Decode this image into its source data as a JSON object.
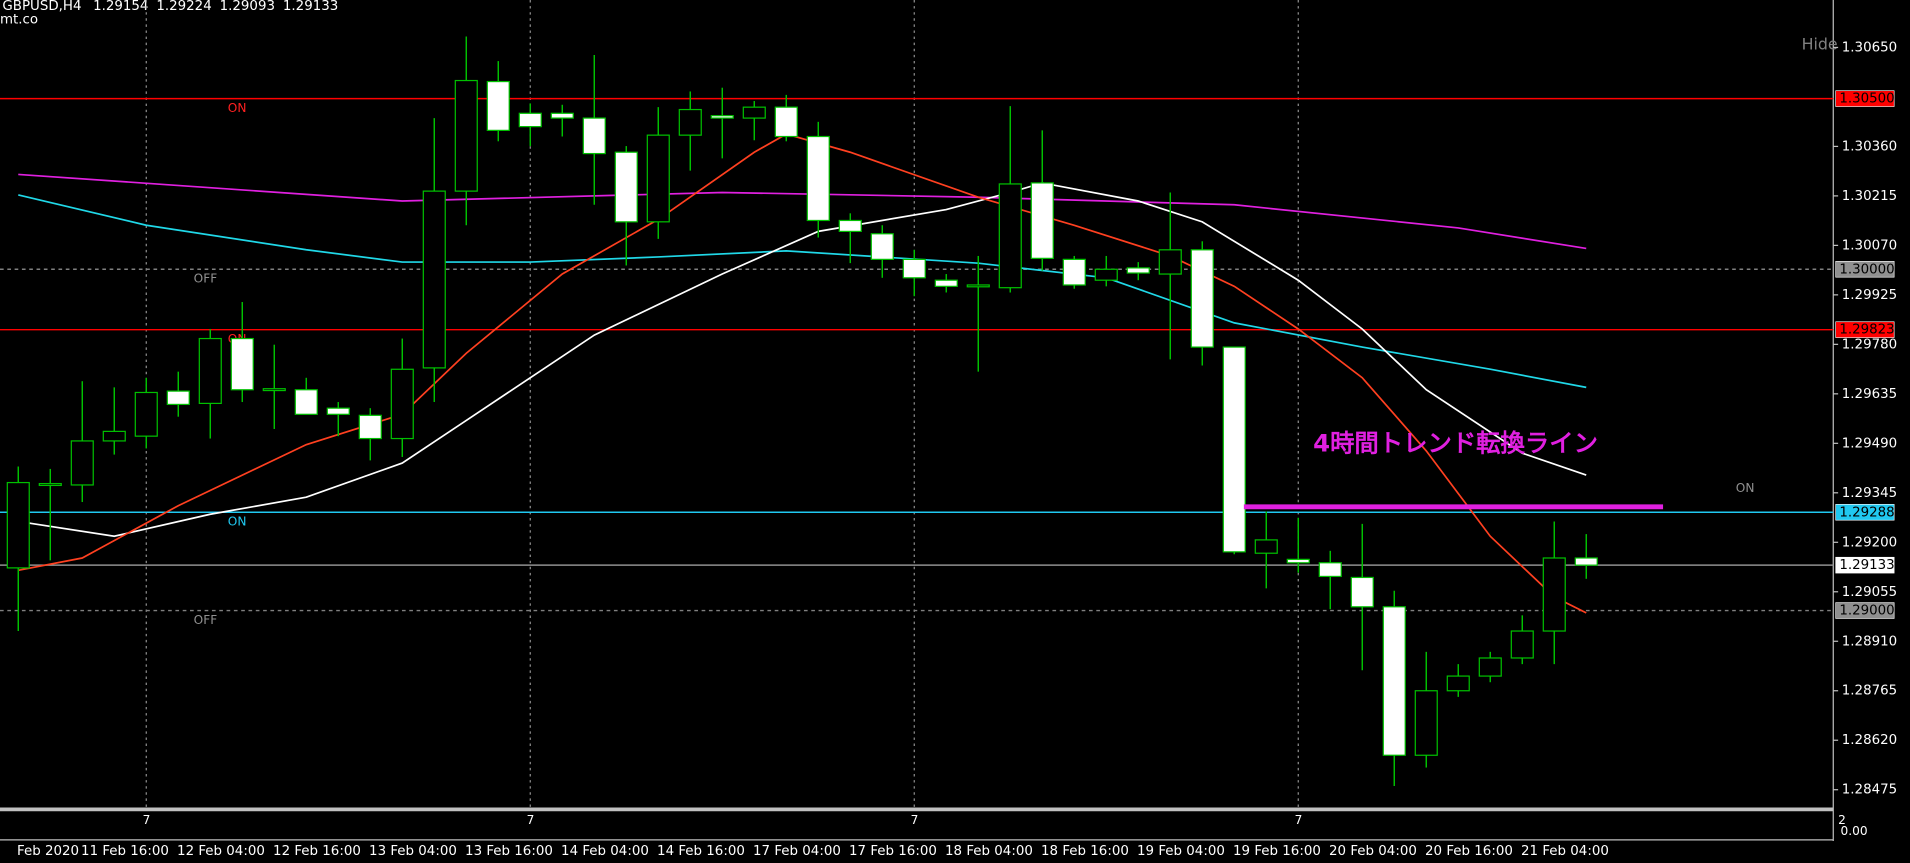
{
  "chart_data": {
    "type": "candlestick",
    "title": "GBPUSD,H4",
    "watermark": "mt.co",
    "hide_button": "Hide",
    "subwindow_labels": [
      "2",
      "0.00"
    ],
    "bull_fill": "#000000",
    "bear_fill": "#ffffff",
    "outline_color": "#00c000",
    "categories": [
      "Feb 2020",
      null,
      "11 Feb 16:00",
      null,
      null,
      "12 Feb 04:00",
      null,
      null,
      "12 Feb 16:00",
      null,
      null,
      "13 Feb 04:00",
      null,
      null,
      "13 Feb 16:00",
      null,
      null,
      "14 Feb 04:00",
      null,
      null,
      "14 Feb 16:00",
      null,
      null,
      "17 Feb 04:00",
      null,
      null,
      "17 Feb 16:00",
      null,
      null,
      "18 Feb 04:00",
      null,
      null,
      "18 Feb 16:00",
      null,
      null,
      "19 Feb 04:00",
      null,
      null,
      "19 Feb 16:00",
      null,
      null,
      "20 Feb 04:00",
      null,
      null,
      "20 Feb 16:00",
      null,
      null,
      "21 Feb 04:00",
      null,
      null
    ],
    "open": [
      1.29125,
      1.29368,
      1.29368,
      1.29497,
      1.29511,
      1.29643,
      1.29607,
      1.29797,
      1.29647,
      1.29647,
      1.29593,
      1.29572,
      1.29504,
      1.29711,
      1.30229,
      1.3055,
      1.30457,
      1.30457,
      1.30443,
      1.30343,
      1.30139,
      1.30393,
      1.3045,
      1.30443,
      1.30475,
      1.30389,
      1.30143,
      1.30104,
      1.30029,
      1.29968,
      1.2995,
      1.29946,
      1.30253,
      1.30029,
      1.29968,
      1.30004,
      1.29986,
      1.30057,
      1.29772,
      1.29168,
      1.2915,
      1.2914,
      1.29097,
      1.29011,
      1.28576,
      1.28765,
      1.28808,
      1.28861,
      1.2894,
      1.29154
    ],
    "high": [
      1.29422,
      1.29415,
      1.29672,
      1.29654,
      1.29682,
      1.297,
      1.29825,
      1.29904,
      1.29779,
      1.29682,
      1.29611,
      1.29593,
      1.29797,
      1.30443,
      1.30682,
      1.3061,
      1.30486,
      1.30482,
      1.30628,
      1.30361,
      1.30475,
      1.30521,
      1.30532,
      1.30493,
      1.30511,
      1.30432,
      1.30164,
      1.30129,
      1.30057,
      1.29986,
      1.30039,
      1.30478,
      1.30407,
      1.30039,
      1.30039,
      1.30021,
      1.30225,
      1.30082,
      1.29772,
      1.2929,
      1.29272,
      1.29175,
      1.29254,
      1.29058,
      1.28879,
      1.28843,
      1.28879,
      1.28986,
      1.29261,
      1.29224
    ],
    "low": [
      1.2894,
      1.29147,
      1.29318,
      1.29457,
      1.29475,
      1.29568,
      1.29504,
      1.29611,
      1.29532,
      1.29575,
      1.29511,
      1.2944,
      1.2945,
      1.29611,
      1.30129,
      1.30375,
      1.30361,
      1.30389,
      1.30189,
      1.30011,
      1.30089,
      1.30289,
      1.30325,
      1.30378,
      1.30375,
      1.30093,
      1.30018,
      1.29975,
      1.29921,
      1.29932,
      1.297,
      1.29932,
      1.29996,
      1.29943,
      1.2995,
      1.29968,
      1.29736,
      1.29718,
      1.29165,
      1.29065,
      1.29111,
      1.29004,
      1.28825,
      1.28486,
      1.2854,
      1.28747,
      1.2879,
      1.28843,
      1.28843,
      1.29093
    ],
    "close": [
      1.29375,
      1.29372,
      1.29497,
      1.29525,
      1.29639,
      1.29604,
      1.29797,
      1.29647,
      1.2965,
      1.29575,
      1.29575,
      1.29504,
      1.29707,
      1.30229,
      1.30553,
      1.30407,
      1.30418,
      1.30443,
      1.30339,
      1.30139,
      1.30393,
      1.30468,
      1.30443,
      1.30475,
      1.30389,
      1.30143,
      1.30111,
      1.30029,
      1.29975,
      1.2995,
      1.29954,
      1.3025,
      1.30032,
      1.29954,
      1.3,
      1.29989,
      1.30057,
      1.29772,
      1.29172,
      1.29207,
      1.2914,
      1.291,
      1.29011,
      1.28576,
      1.28765,
      1.28808,
      1.28861,
      1.2894,
      1.29154,
      1.29133
    ],
    "indicators": [
      {
        "color": "#e020e0",
        "x": [
          0,
          12,
          22,
          30,
          38,
          45,
          49
        ],
        "values": [
          1.30278,
          1.302,
          1.30225,
          1.30211,
          1.30189,
          1.30121,
          1.30061
        ]
      },
      {
        "color": "#20d8e8",
        "x": [
          0,
          4,
          9,
          12,
          16,
          20,
          24,
          30,
          34,
          38,
          42,
          46,
          49
        ],
        "values": [
          1.30218,
          1.30129,
          1.30057,
          1.30021,
          1.30021,
          1.30036,
          1.30054,
          1.30018,
          1.29975,
          1.29843,
          1.29772,
          1.29707,
          1.29654
        ]
      },
      {
        "color": "#ffffff",
        "x": [
          0,
          3,
          6,
          9,
          12,
          14,
          18,
          22,
          25,
          29,
          31,
          32,
          35,
          37,
          40,
          42,
          44,
          47,
          49
        ],
        "values": [
          1.29261,
          1.29218,
          1.29282,
          1.29332,
          1.29432,
          1.29557,
          1.29807,
          1.29986,
          1.30111,
          1.30175,
          1.30225,
          1.30253,
          1.302,
          1.30139,
          1.29968,
          1.29825,
          1.29647,
          1.29461,
          1.29397
        ]
      },
      {
        "color": "#ff4020",
        "x": [
          0,
          2,
          5,
          9,
          12,
          14,
          17,
          20,
          23,
          24,
          26,
          30,
          33,
          36,
          38,
          40,
          42,
          44,
          46,
          48,
          49
        ],
        "values": [
          1.29118,
          1.29154,
          1.29307,
          1.29486,
          1.29575,
          1.29754,
          1.29986,
          1.30146,
          1.30343,
          1.30396,
          1.30343,
          1.30211,
          1.30129,
          1.30039,
          1.2995,
          1.29825,
          1.29682,
          1.29468,
          1.29218,
          1.2904,
          1.28993
        ]
      }
    ],
    "ylim": [
      1.28421,
      1.30789
    ],
    "yticks": [
      {
        "value": 1.3065,
        "label": "1.30650"
      },
      {
        "value": 1.3036,
        "label": "1.30360"
      },
      {
        "value": 1.30215,
        "label": "1.30215"
      },
      {
        "value": 1.3007,
        "label": "1.30070"
      },
      {
        "value": 1.29925,
        "label": "1.29925"
      },
      {
        "value": 1.2978,
        "label": "1.29780"
      },
      {
        "value": 1.29635,
        "label": "1.29635"
      },
      {
        "value": 1.2949,
        "label": "1.29490"
      },
      {
        "value": 1.29345,
        "label": "1.29345"
      },
      {
        "value": 1.292,
        "label": "1.29200"
      },
      {
        "value": 1.29055,
        "label": "1.29055"
      },
      {
        "value": 1.2891,
        "label": "1.28910"
      },
      {
        "value": 1.28765,
        "label": "1.28765"
      },
      {
        "value": 1.2862,
        "label": "1.28620"
      },
      {
        "value": 1.28475,
        "label": "1.28475"
      }
    ],
    "xgrid": [
      {
        "value": 4,
        "label": "7"
      },
      {
        "value": 16,
        "label": "7"
      },
      {
        "value": 28,
        "label": "7"
      },
      {
        "value": 40,
        "label": "7"
      }
    ],
    "hlines": [
      {
        "value": 1.305,
        "label": "1.30500",
        "color": "#ff0000",
        "dash": false,
        "label_bg": "#ff0000",
        "label_color": "#000000",
        "tag": "ON",
        "tag_color": "#ff2020"
      },
      {
        "value": 1.3,
        "label": "1.30000",
        "color": "#808080",
        "dash": true,
        "label_bg": "#909090",
        "label_color": "#000000",
        "tag": "OFF",
        "tag_color": "#909090"
      },
      {
        "value": 1.29823,
        "label": "1.29823",
        "color": "#ff0000",
        "dash": false,
        "label_bg": "#ff0000",
        "label_color": "#000000",
        "tag": "ON",
        "tag_color": "#ff2020"
      },
      {
        "value": 1.29288,
        "label": "1.29288",
        "color": "#20c8f0",
        "dash": false,
        "label_bg": "#20c8f0",
        "label_color": "#000000",
        "tag": "ON",
        "tag_color": "#20c8f0"
      },
      {
        "value": 1.29133,
        "label": "1.29133",
        "color": "#909090",
        "dash": false,
        "label_bg": "#ffffff",
        "label_color": "#000000",
        "tag": null,
        "tag_color": null
      },
      {
        "value": 1.29,
        "label": "1.29000",
        "color": "#808080",
        "dash": true,
        "label_bg": "#909090",
        "label_color": "#000000",
        "tag": "OFF",
        "tag_color": "#909090"
      }
    ],
    "trend_line": {
      "label": "4時間トレンド転換ライン",
      "value": 1.29304,
      "from": 38.3,
      "to": 51.4,
      "color": "#e020e0",
      "tag": "ON"
    }
  }
}
